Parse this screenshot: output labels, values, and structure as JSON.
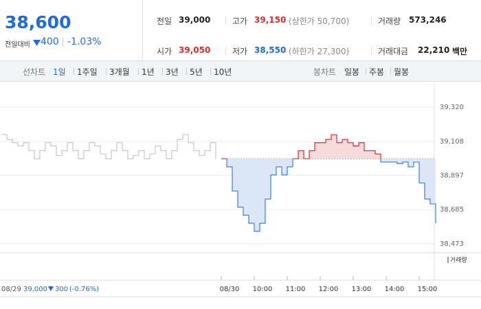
{
  "quote": {
    "price": "38,600",
    "change_label": "전일대비",
    "change": "400",
    "rate": "-1.03%"
  },
  "stats": [
    {
      "label": "전일",
      "value": "39,000"
    },
    {
      "label": "고가",
      "value": "39,150",
      "note": "(상한가 50,700)"
    },
    {
      "label": "거래량",
      "value": "573,246"
    },
    {
      "label": "시가",
      "value": "39,050"
    },
    {
      "label": "저가",
      "value": "38,550",
      "note": "(하한가 27,300)"
    },
    {
      "label": "거래대금",
      "value": "22,210",
      "unit": "백만"
    }
  ],
  "tabs": {
    "line_label": "선차트",
    "periods": [
      "1일",
      "1주일",
      "3개월",
      "1년",
      "3년",
      "5년",
      "10년"
    ],
    "candle_label": "봉차트",
    "candles": [
      "일봉",
      "주봉",
      "월봉"
    ]
  },
  "prev_day": {
    "date": "08/29",
    "close": "39,000",
    "change": "300",
    "rate": "(-0.76%)"
  },
  "chart_data": {
    "type": "line",
    "volume_label": "거래량",
    "volume_color": "#9b8fd4",
    "categories": [
      null,
      null,
      null,
      null,
      null,
      null,
      null,
      null,
      null,
      null,
      null,
      null,
      null,
      null,
      null,
      null,
      null,
      null,
      null,
      null,
      null,
      null,
      null,
      null,
      null,
      null,
      null,
      null,
      null,
      null,
      null,
      null,
      null,
      null,
      null,
      null,
      null,
      null,
      null,
      null,
      "08/30",
      null,
      null,
      null,
      null,
      null,
      "10:00",
      null,
      null,
      null,
      null,
      null,
      "11:00",
      null,
      null,
      null,
      null,
      null,
      "12:00",
      null,
      null,
      null,
      null,
      null,
      "13:00",
      null,
      null,
      null,
      null,
      null,
      "14:00",
      null,
      null,
      null,
      null,
      null,
      "15:00",
      null,
      null,
      null
    ],
    "baseline": 39000,
    "series": [
      {
        "color": "#c6c6c6",
        "values": [
          39150,
          39120,
          39100,
          39080,
          39100,
          39050,
          39000,
          39050,
          39100,
          39080,
          39020,
          39050,
          39100,
          39050,
          39000,
          39050,
          39100,
          39080,
          39030,
          39000,
          39050,
          39100,
          39050,
          39000,
          39020,
          39050,
          39000,
          39030,
          39080,
          39050,
          39000,
          39050,
          39120,
          39150,
          39100,
          39050,
          39020,
          39050,
          39100,
          39000,
          null,
          null,
          null,
          null,
          null,
          null,
          null,
          null,
          null,
          null,
          null,
          null,
          null,
          null,
          null,
          null,
          null,
          null,
          null,
          null,
          null,
          null,
          null,
          null,
          null,
          null,
          null,
          null,
          null,
          null,
          null,
          null,
          null,
          null,
          null,
          null,
          null,
          null,
          null,
          null
        ]
      },
      {
        "color": "#3d7ede",
        "up_color": "#e2282d",
        "values": [
          null,
          null,
          null,
          null,
          null,
          null,
          null,
          null,
          null,
          null,
          null,
          null,
          null,
          null,
          null,
          null,
          null,
          null,
          null,
          null,
          null,
          null,
          null,
          null,
          null,
          null,
          null,
          null,
          null,
          null,
          null,
          null,
          null,
          null,
          null,
          null,
          null,
          null,
          null,
          null,
          39000,
          38950,
          38800,
          38700,
          38650,
          38600,
          38550,
          38600,
          38750,
          38900,
          38950,
          38900,
          38950,
          39000,
          39050,
          39000,
          39050,
          39100,
          39100,
          39120,
          39150,
          39100,
          39120,
          39100,
          39080,
          39100,
          39050,
          39050,
          39030,
          38980,
          38980,
          38980,
          38970,
          38980,
          38950,
          38980,
          38850,
          38750,
          38720,
          38600
        ]
      }
    ],
    "ylim": [
      38430,
      39440
    ],
    "yticks": [
      {
        "value": 38473,
        "label": "38,473"
      },
      {
        "value": 38685,
        "label": "38,685"
      },
      {
        "value": 38897,
        "label": "38,897"
      },
      {
        "value": 39108,
        "label": "39,108"
      },
      {
        "value": 39320,
        "label": "39,320"
      }
    ],
    "grid": true
  }
}
